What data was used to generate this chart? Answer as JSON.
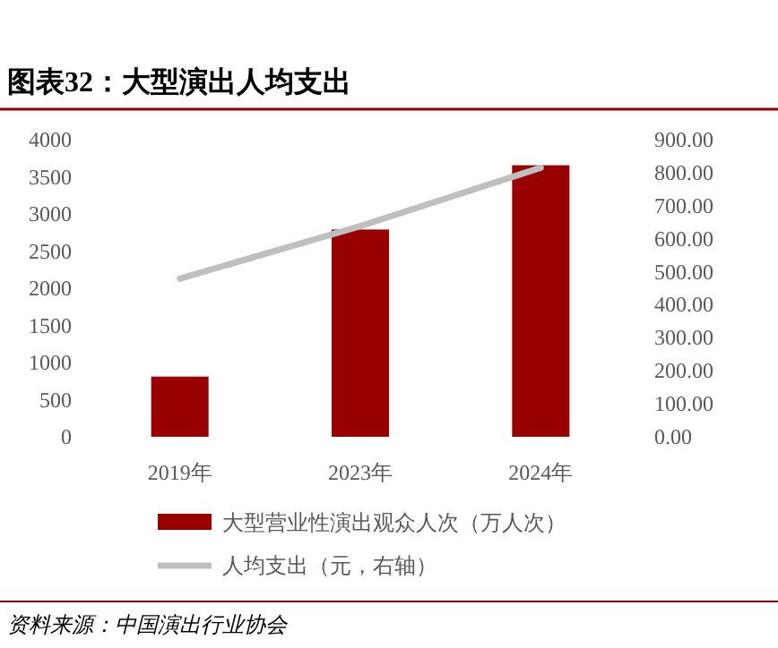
{
  "chart_data": {
    "type": "bar",
    "title": "图表32：大型演出人均支出",
    "categories": [
      "2019年",
      "2023年",
      "2024年"
    ],
    "series": [
      {
        "name": "大型营业性演出观众人次（万人次）",
        "color": "#990000",
        "values": [
          810,
          2790,
          3655
        ]
      },
      {
        "name": "人均支出（元，右轴）",
        "type": "line",
        "axis": "y2",
        "color": "#bfbfbf",
        "values": [
          479,
          638,
          815
        ]
      }
    ],
    "ylim": [
      0,
      4000
    ],
    "yticks": [
      0,
      500,
      1000,
      1500,
      2000,
      2500,
      3000,
      3500,
      4000
    ],
    "y2lim": [
      0,
      900
    ],
    "y2ticks": [
      {
        "value": 0,
        "label": "0.00"
      },
      {
        "value": 100,
        "label": "100.00"
      },
      {
        "value": 200,
        "label": "200.00"
      },
      {
        "value": 300,
        "label": "300.00"
      },
      {
        "value": 400,
        "label": "400.00"
      },
      {
        "value": 500,
        "label": "500.00"
      },
      {
        "value": 600,
        "label": "600.00"
      },
      {
        "value": 700,
        "label": "700.00"
      },
      {
        "value": 800,
        "label": "800.00"
      },
      {
        "value": 900,
        "label": "900.00"
      }
    ],
    "grid": false,
    "legend": "bottom",
    "annotations": [
      "资料来源：中国演出行业协会"
    ]
  }
}
